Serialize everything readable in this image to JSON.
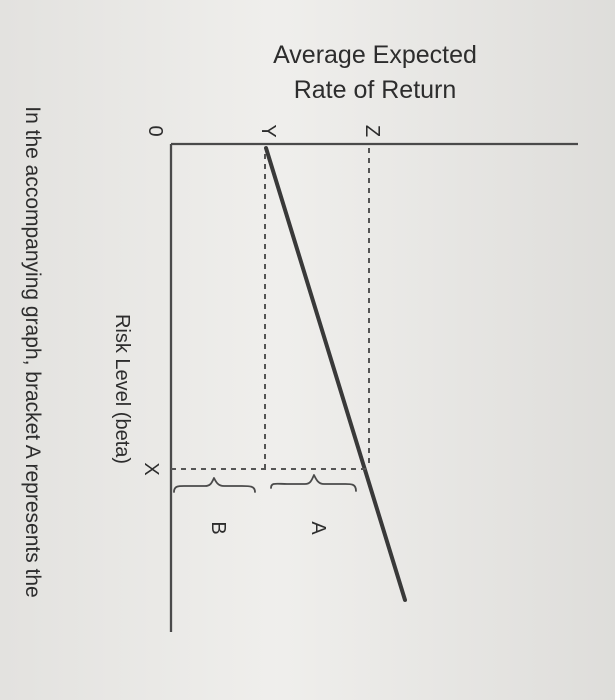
{
  "graph": {
    "title_line1": "Average Expected",
    "title_line2": "Rate of Return",
    "x_axis_label": "Risk Level (beta)",
    "origin_label": "0",
    "x_marker": "X",
    "y_marker_low": "Y",
    "y_marker_high": "Z",
    "bracket_a": "A",
    "bracket_b": "B"
  },
  "question": {
    "text": "In the accompanying graph, bracket A represents the"
  }
}
